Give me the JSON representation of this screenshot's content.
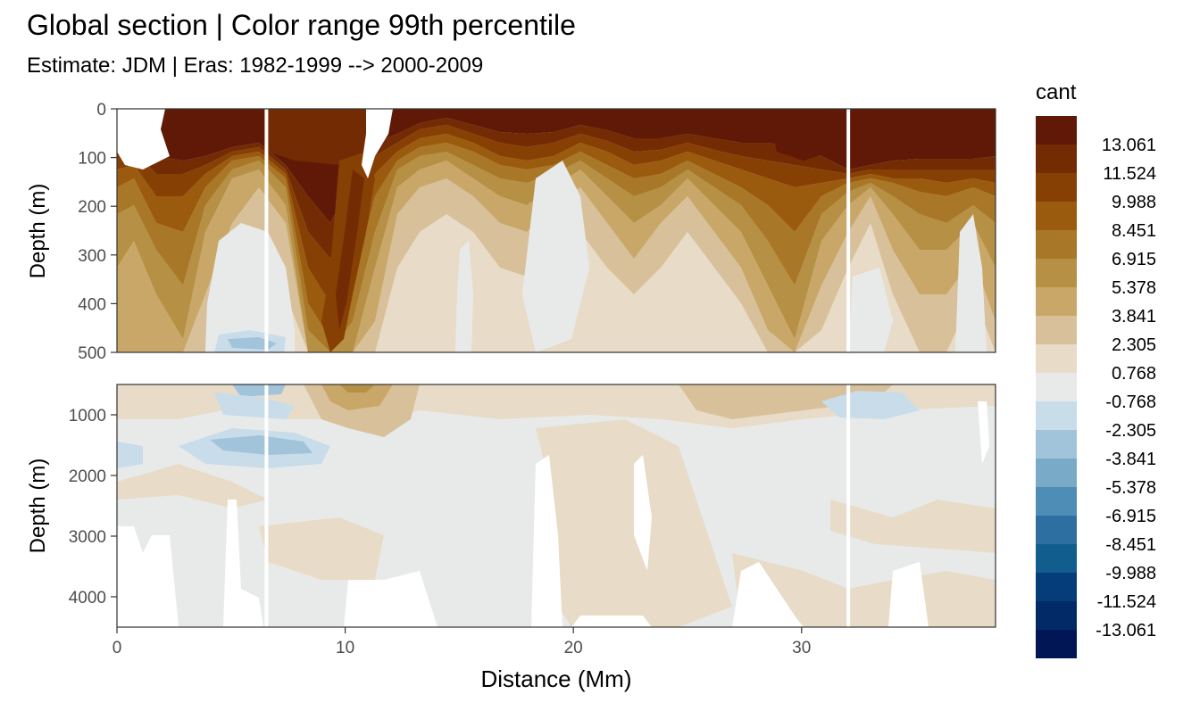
{
  "title": "Global section | Color range 99th percentile",
  "subtitle": "Estimate: JDM  | Eras: 1982-1999 --> 2000-2009",
  "chart_data": {
    "type": "heatmap",
    "title": "Global section | Color range 99th percentile",
    "subtitle": "Estimate: JDM  | Eras: 1982-1999 --> 2000-2009",
    "xlabel": "Distance (Mm)",
    "xlim": [
      0,
      38.5
    ],
    "x_ticks": [
      "0",
      "10",
      "20",
      "30"
    ],
    "x_tick_values": [
      0,
      10,
      20,
      30
    ],
    "panels": [
      {
        "ylabel": "Depth (m)",
        "ylim": [
          0,
          500
        ],
        "y_ticks": [
          "0",
          "100",
          "200",
          "300",
          "400",
          "500"
        ],
        "y_tick_values": [
          0,
          100,
          200,
          300,
          400,
          500
        ]
      },
      {
        "ylabel": "Depth (m)",
        "ylim": [
          500,
          4500
        ],
        "y_ticks": [
          "1000",
          "2000",
          "3000",
          "4000"
        ],
        "y_tick_values": [
          1000,
          2000,
          3000,
          4000
        ]
      }
    ],
    "legend": {
      "title": "cant",
      "position": "right",
      "labels": [
        "13.061",
        "11.524",
        "9.988",
        "8.451",
        "6.915",
        "5.378",
        "3.841",
        "2.305",
        "0.768",
        "-0.768",
        "-2.305",
        "-3.841",
        "-5.378",
        "-6.915",
        "-8.451",
        "-9.988",
        "-11.524",
        "-13.061"
      ],
      "colors": [
        "#5f1906",
        "#732b04",
        "#874004",
        "#9b5b0f",
        "#a97728",
        "#b69044",
        "#c9a768",
        "#d8c19a",
        "#e8dcc8",
        "#e8eaea",
        "#c8dcea",
        "#a2c4da",
        "#79aac8",
        "#4e8db5",
        "#2e6fa2",
        "#115e8e",
        "#053d7a",
        "#022a66",
        "#011655"
      ]
    },
    "grid": true,
    "gaps_x": [
      6.55,
      32.05
    ]
  }
}
